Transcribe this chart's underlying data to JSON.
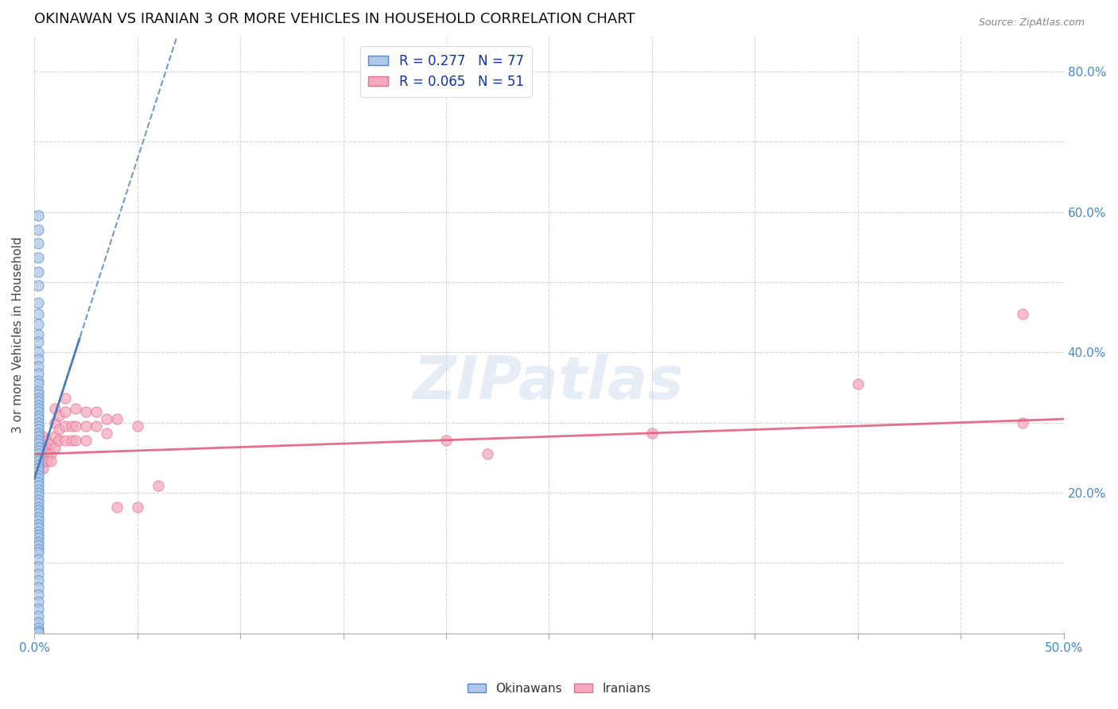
{
  "title": "OKINAWAN VS IRANIAN 3 OR MORE VEHICLES IN HOUSEHOLD CORRELATION CHART",
  "source": "Source: ZipAtlas.com",
  "ylabel": "3 or more Vehicles in Household",
  "xlim": [
    0.0,
    0.5
  ],
  "ylim": [
    0.0,
    0.85
  ],
  "x_ticks": [
    0.0,
    0.05,
    0.1,
    0.15,
    0.2,
    0.25,
    0.3,
    0.35,
    0.4,
    0.45,
    0.5
  ],
  "y_ticks": [
    0.0,
    0.1,
    0.2,
    0.3,
    0.4,
    0.5,
    0.6,
    0.7,
    0.8
  ],
  "okinawan_color": "#adc8e8",
  "okinawan_edge": "#5588cc",
  "iranian_color": "#f5aabf",
  "iranian_edge": "#e07090",
  "okinawan_R": 0.277,
  "okinawan_N": 77,
  "iranian_R": 0.065,
  "iranian_N": 51,
  "grid_color": "#cccccc",
  "background_color": "#ffffff",
  "okinawan_trendline_color": "#4477bb",
  "iranian_trendline_color": "#e06080",
  "okinawan_trend_x0": 0.0,
  "okinawan_trend_y0": 0.22,
  "okinawan_trend_x1": 0.022,
  "okinawan_trend_y1": 0.42,
  "iranian_trend_x0": 0.0,
  "iranian_trend_y0": 0.255,
  "iranian_trend_x1": 0.5,
  "iranian_trend_y1": 0.305,
  "okinawan_scatter_x": [
    0.002,
    0.002,
    0.002,
    0.002,
    0.002,
    0.002,
    0.002,
    0.002,
    0.002,
    0.002,
    0.002,
    0.002,
    0.002,
    0.002,
    0.002,
    0.002,
    0.002,
    0.002,
    0.002,
    0.002,
    0.002,
    0.002,
    0.002,
    0.002,
    0.002,
    0.002,
    0.002,
    0.002,
    0.002,
    0.002,
    0.002,
    0.002,
    0.002,
    0.002,
    0.002,
    0.002,
    0.002,
    0.002,
    0.002,
    0.002,
    0.002,
    0.002,
    0.002,
    0.002,
    0.002,
    0.002,
    0.002,
    0.002,
    0.002,
    0.002,
    0.002,
    0.002,
    0.002,
    0.002,
    0.002,
    0.002,
    0.002,
    0.002,
    0.002,
    0.002,
    0.002,
    0.002,
    0.002,
    0.002,
    0.002,
    0.002,
    0.002,
    0.002,
    0.002,
    0.002,
    0.002,
    0.002,
    0.002,
    0.002,
    0.002,
    0.002,
    0.002
  ],
  "okinawan_scatter_y": [
    0.595,
    0.575,
    0.555,
    0.535,
    0.515,
    0.495,
    0.47,
    0.455,
    0.44,
    0.425,
    0.415,
    0.4,
    0.39,
    0.38,
    0.37,
    0.36,
    0.355,
    0.345,
    0.34,
    0.335,
    0.33,
    0.325,
    0.32,
    0.315,
    0.31,
    0.305,
    0.3,
    0.295,
    0.29,
    0.285,
    0.28,
    0.275,
    0.27,
    0.265,
    0.26,
    0.255,
    0.25,
    0.245,
    0.24,
    0.235,
    0.23,
    0.225,
    0.22,
    0.215,
    0.21,
    0.205,
    0.2,
    0.195,
    0.19,
    0.185,
    0.18,
    0.175,
    0.17,
    0.165,
    0.16,
    0.155,
    0.15,
    0.145,
    0.14,
    0.135,
    0.13,
    0.125,
    0.12,
    0.115,
    0.105,
    0.095,
    0.085,
    0.075,
    0.065,
    0.055,
    0.045,
    0.035,
    0.025,
    0.015,
    0.008,
    0.003,
    0.001
  ],
  "iranian_scatter_x": [
    0.002,
    0.002,
    0.002,
    0.002,
    0.002,
    0.004,
    0.004,
    0.004,
    0.004,
    0.004,
    0.006,
    0.006,
    0.006,
    0.006,
    0.008,
    0.008,
    0.008,
    0.01,
    0.01,
    0.01,
    0.01,
    0.012,
    0.012,
    0.012,
    0.015,
    0.015,
    0.015,
    0.015,
    0.018,
    0.018,
    0.02,
    0.02,
    0.02,
    0.025,
    0.025,
    0.025,
    0.03,
    0.03,
    0.035,
    0.035,
    0.04,
    0.04,
    0.05,
    0.05,
    0.06,
    0.2,
    0.22,
    0.3,
    0.4,
    0.48,
    0.48
  ],
  "iranian_scatter_y": [
    0.285,
    0.27,
    0.26,
    0.245,
    0.235,
    0.28,
    0.265,
    0.255,
    0.245,
    0.235,
    0.275,
    0.265,
    0.255,
    0.245,
    0.27,
    0.255,
    0.245,
    0.32,
    0.3,
    0.28,
    0.265,
    0.31,
    0.29,
    0.275,
    0.335,
    0.315,
    0.295,
    0.275,
    0.295,
    0.275,
    0.32,
    0.295,
    0.275,
    0.315,
    0.295,
    0.275,
    0.315,
    0.295,
    0.305,
    0.285,
    0.305,
    0.18,
    0.295,
    0.18,
    0.21,
    0.275,
    0.255,
    0.285,
    0.355,
    0.455,
    0.3
  ]
}
